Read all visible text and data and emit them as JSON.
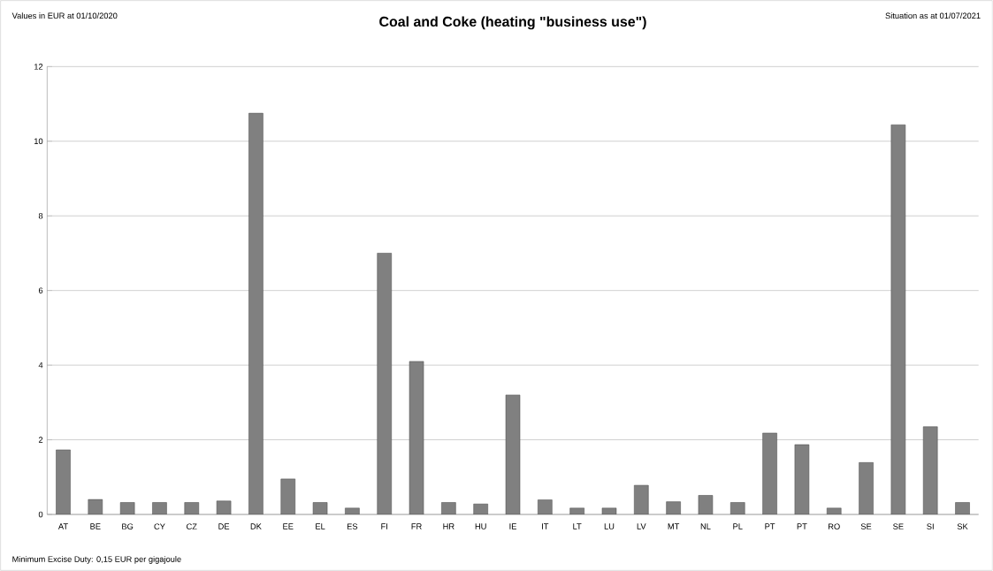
{
  "chart_data": {
    "type": "bar",
    "title": "Coal and Coke (heating \"business use\")",
    "annotations": [
      "Values in EUR at 01/10/2020",
      "Situation as at 01/07/2021",
      "Minimum Excise Duty: 0,15 EUR per gigajoule"
    ],
    "categories": [
      "AT",
      "BE",
      "BG",
      "CY",
      "CZ",
      "DE",
      "DK",
      "EE",
      "EL",
      "ES",
      "FI",
      "FR",
      "HR",
      "HU",
      "IE",
      "IT",
      "LT",
      "LU",
      "LV",
      "MT",
      "NL",
      "PL",
      "PT",
      "PT",
      "RO",
      "SE",
      "SE",
      "SI",
      "SK"
    ],
    "values": [
      1.73,
      0.4,
      0.32,
      0.32,
      0.32,
      0.36,
      10.75,
      0.95,
      0.32,
      0.17,
      7.0,
      4.1,
      0.32,
      0.28,
      3.2,
      0.39,
      0.17,
      0.17,
      0.78,
      0.34,
      0.51,
      0.32,
      2.18,
      1.87,
      0.17,
      1.39,
      10.44,
      2.35,
      0.32
    ],
    "color": "#808080",
    "ylim": [
      0,
      12
    ],
    "yticks": [
      0,
      2,
      4,
      6,
      8,
      10,
      12
    ],
    "grid": "y"
  }
}
